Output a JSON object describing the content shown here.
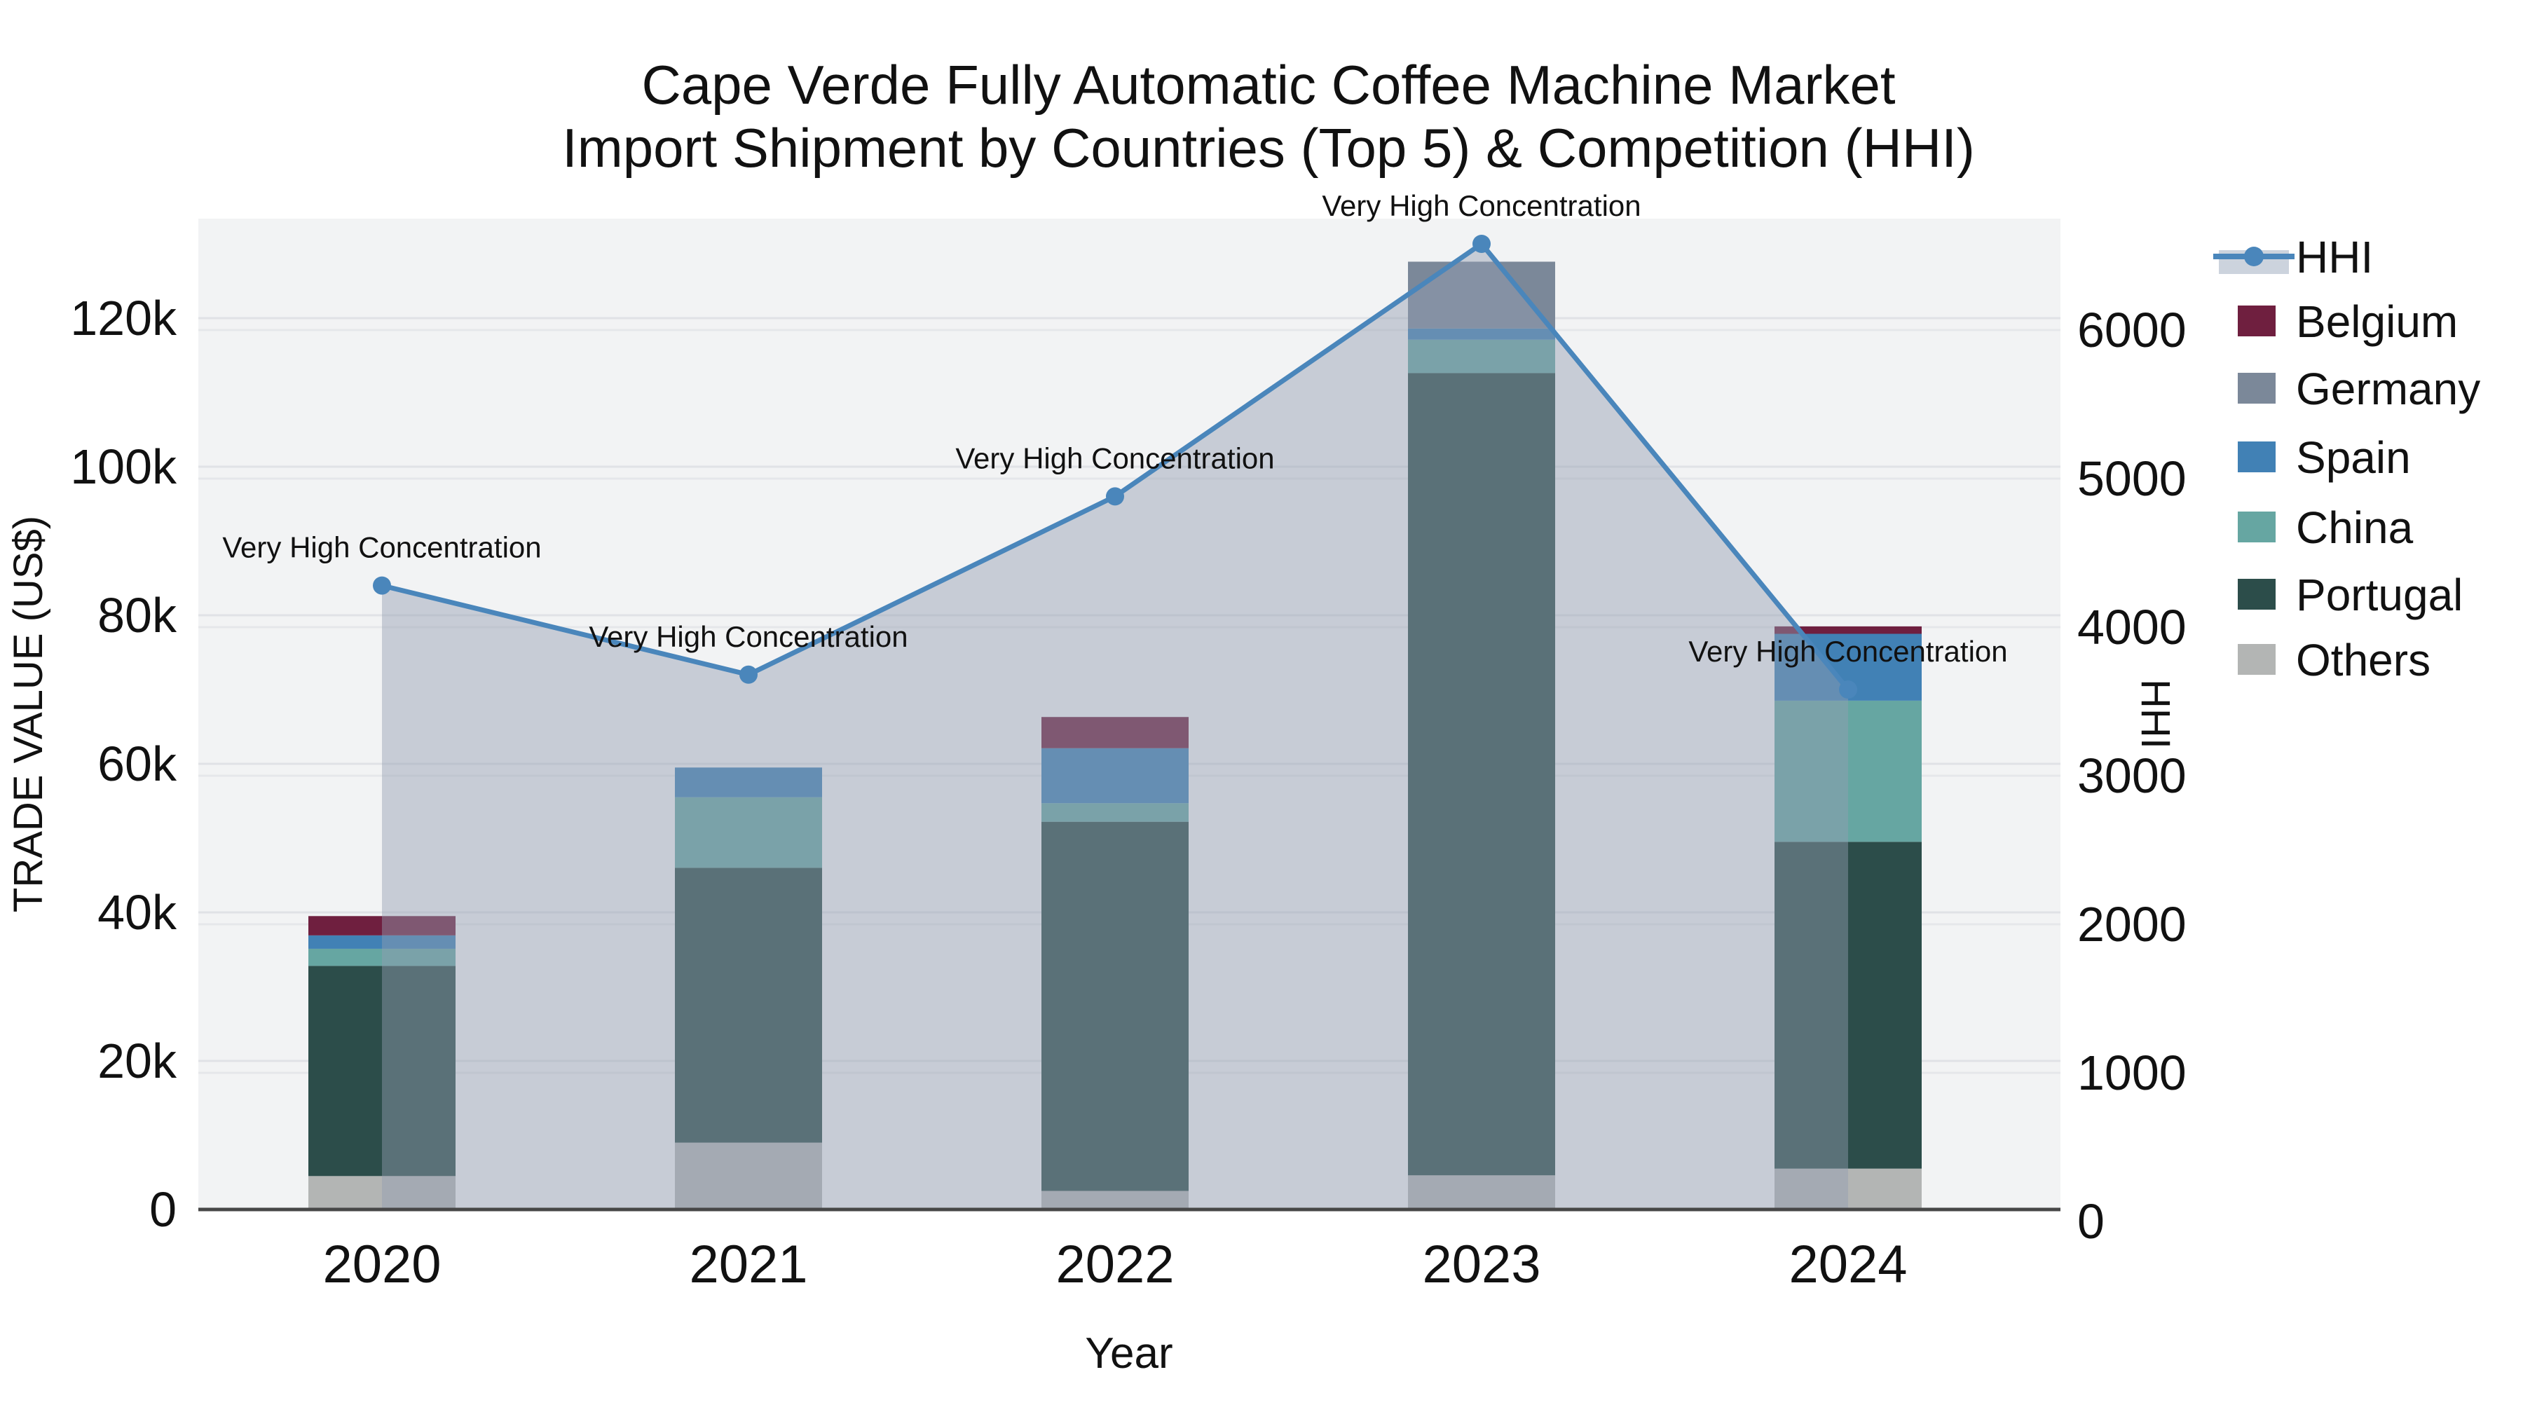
{
  "title": {
    "line1": "Cape Verde Fully Automatic Coffee Machine Market",
    "line2": "Import Shipment by Countries (Top 5) & Competition (HHI)"
  },
  "annotation_text": "Very High Concentration",
  "colors": {
    "plot_background": "#f2f3f4",
    "axis_line": "#474747",
    "gridline": "rgba(120,130,150,0.14)",
    "gridline_secondary": "rgba(120,130,150,0.10)",
    "hhi_line": "#4a86bb",
    "hhi_area_fill": "rgba(146,157,178,0.45)",
    "hhi_legend_band": "#ccd3dd"
  },
  "chart_data": {
    "type": "bar",
    "combo": "stacked-bar+line",
    "title": "Cape Verde Fully Automatic Coffee Machine Market Import Shipment by Countries (Top 5) & Competition (HHI)",
    "categories": [
      "2020",
      "2021",
      "2022",
      "2023",
      "2024"
    ],
    "stack_bottom_to_top": [
      "Others",
      "Portugal",
      "China",
      "Spain",
      "Germany",
      "Belgium"
    ],
    "series": [
      {
        "name": "Belgium",
        "color": "#6f1f3f",
        "values": [
          2600,
          0,
          4200,
          0,
          1000
        ]
      },
      {
        "name": "Germany",
        "color": "#7b8899",
        "values": [
          0,
          0,
          0,
          9000,
          0
        ]
      },
      {
        "name": "Spain",
        "color": "#4181b5",
        "values": [
          1800,
          4000,
          7400,
          1500,
          9000
        ]
      },
      {
        "name": "China",
        "color": "#66a6a2",
        "values": [
          2300,
          9500,
          2500,
          4500,
          19000
        ]
      },
      {
        "name": "Portugal",
        "color": "#2c4d4a",
        "values": [
          28300,
          37000,
          49700,
          108000,
          44000
        ]
      },
      {
        "name": "Others",
        "color": "#b3b5b4",
        "values": [
          4500,
          9000,
          2500,
          4600,
          5500
        ]
      }
    ],
    "bar_totals": [
      39500,
      59500,
      66300,
      127600,
      78500
    ],
    "line_series": {
      "name": "HHI",
      "values": [
        4200,
        3600,
        4800,
        6500,
        3500
      ]
    },
    "annotations": [
      "Very High Concentration",
      "Very High Concentration",
      "Very High Concentration",
      "Very High Concentration",
      "Very High Concentration"
    ],
    "xlabel": "Year",
    "y_left": {
      "label": "TRADE VALUE (US$)",
      "tick_labels": [
        "0",
        "20k",
        "40k",
        "60k",
        "80k",
        "100k",
        "120k"
      ],
      "tick_values": [
        0,
        20000,
        40000,
        60000,
        80000,
        100000,
        120000
      ],
      "range": [
        0,
        133500
      ]
    },
    "y_right": {
      "label": "HHI",
      "tick_labels": [
        "0",
        "1000",
        "2000",
        "3000",
        "4000",
        "5000",
        "6000"
      ],
      "tick_values": [
        0,
        1000,
        2000,
        3000,
        4000,
        5000,
        6000
      ],
      "range": [
        0,
        6675
      ]
    },
    "grid": true,
    "legend_position": "right",
    "legend_order": [
      "HHI",
      "Belgium",
      "Germany",
      "Spain",
      "China",
      "Portugal",
      "Others"
    ]
  }
}
